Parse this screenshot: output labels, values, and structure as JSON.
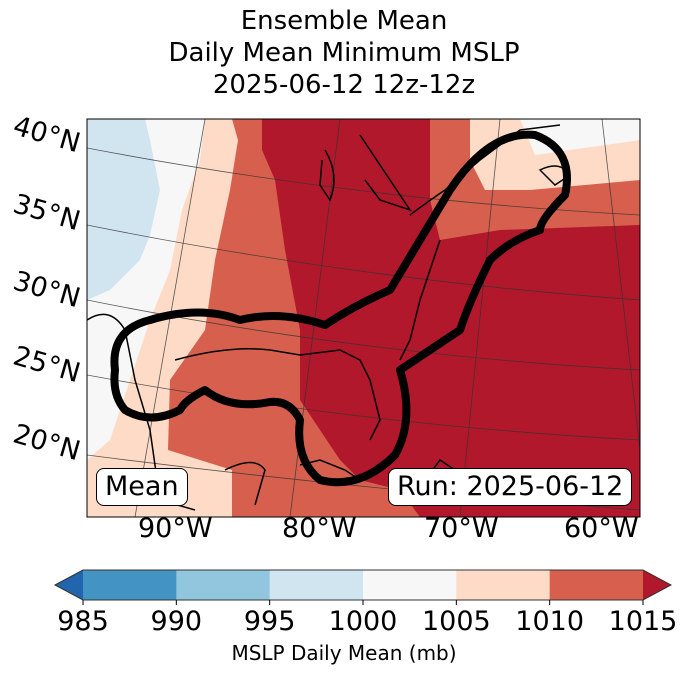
{
  "title": {
    "line1": "Ensemble Mean",
    "line2": "Daily Mean Minimum MSLP",
    "line3": "2025-06-12 12z-12z"
  },
  "map": {
    "lat_labels": [
      "40°N",
      "35°N",
      "30°N",
      "25°N",
      "20°N"
    ],
    "lon_labels": [
      "90°W",
      "80°W",
      "70°W",
      "60°W"
    ],
    "left_box": "Mean",
    "right_box": "Run: 2025-06-12",
    "contour_color": "#000000"
  },
  "colorbar": {
    "ticks": [
      "985",
      "990",
      "995",
      "1000",
      "1005",
      "1010",
      "1015"
    ],
    "label": "MSLP Daily Mean (mb)",
    "colors": [
      "#2166ac",
      "#4393c3",
      "#92c5de",
      "#d1e5f0",
      "#f7f7f7",
      "#fddbc7",
      "#d6604d",
      "#b2182b"
    ]
  },
  "chart_data": {
    "type": "heatmap",
    "title": "Ensemble Mean / Daily Mean Minimum MSLP / 2025-06-12 12z-12z",
    "variable": "MSLP Daily Mean (mb)",
    "levels": [
      985,
      990,
      995,
      1000,
      1005,
      1010,
      1015
    ],
    "extend": "both",
    "region": {
      "lon_range": [
        -97,
        -58
      ],
      "lat_range": [
        17,
        42
      ]
    },
    "bins": [
      {
        "range": "<985",
        "color": "#2166ac"
      },
      {
        "range": "985-990",
        "color": "#4393c3"
      },
      {
        "range": "990-995",
        "color": "#92c5de"
      },
      {
        "range": "995-1000",
        "color": "#d1e5f0"
      },
      {
        "range": "1000-1005",
        "color": "#f7f7f7"
      },
      {
        "range": "1005-1010",
        "color": "#fddbc7"
      },
      {
        "range": "1010-1015",
        "color": "#d6604d"
      },
      {
        "range": ">1015",
        "color": "#b2182b"
      }
    ],
    "annotations": [
      "Mean",
      "Run: 2025-06-12"
    ]
  }
}
